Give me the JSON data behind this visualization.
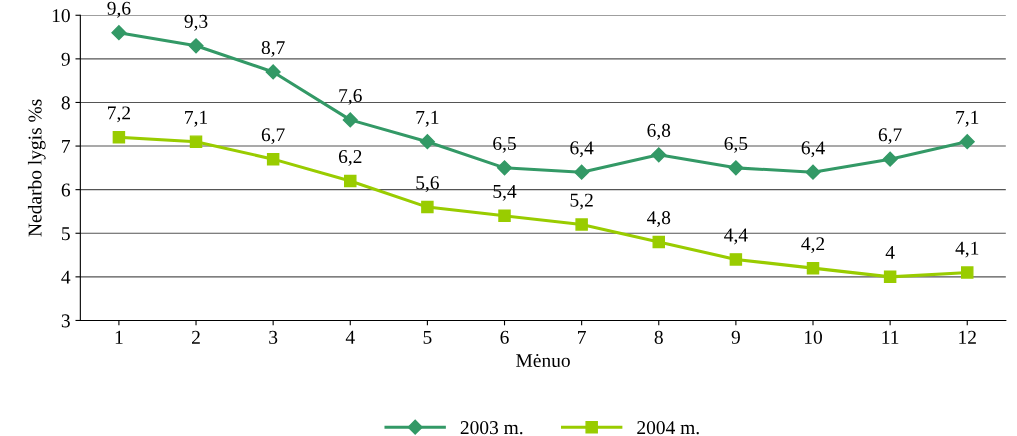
{
  "chart_data": {
    "type": "line",
    "xlabel": "Mėnuo",
    "ylabel": "Nedarbo lygis %s",
    "categories": [
      "1",
      "2",
      "3",
      "4",
      "5",
      "6",
      "7",
      "8",
      "9",
      "10",
      "11",
      "12"
    ],
    "series": [
      {
        "name": "2003 m.",
        "color": "#339966",
        "marker": "diamond",
        "values": [
          9.6,
          9.3,
          8.7,
          7.6,
          7.1,
          6.5,
          6.4,
          6.8,
          6.5,
          6.4,
          6.7,
          7.1
        ],
        "value_labels": [
          "9,6",
          "9,3",
          "8,7",
          "7,6",
          "7,1",
          "6,5",
          "6,4",
          "6,8",
          "6,5",
          "6,4",
          "6,7",
          "7,1"
        ]
      },
      {
        "name": "2004 m.",
        "color": "#99cc00",
        "marker": "square",
        "values": [
          7.2,
          7.1,
          6.7,
          6.2,
          5.6,
          5.4,
          5.2,
          4.8,
          4.4,
          4.2,
          4.0,
          4.1
        ],
        "value_labels": [
          "7,2",
          "7,1",
          "6,7",
          "6,2",
          "5,6",
          "5,4",
          "5,2",
          "4,8",
          "4,4",
          "4,2",
          "4",
          "4,1"
        ]
      }
    ],
    "ylim": [
      3,
      10
    ],
    "yticks": [
      3,
      4,
      5,
      6,
      7,
      8,
      9,
      10
    ],
    "grid": "y",
    "legend": "bottom",
    "line_style": "solid"
  }
}
